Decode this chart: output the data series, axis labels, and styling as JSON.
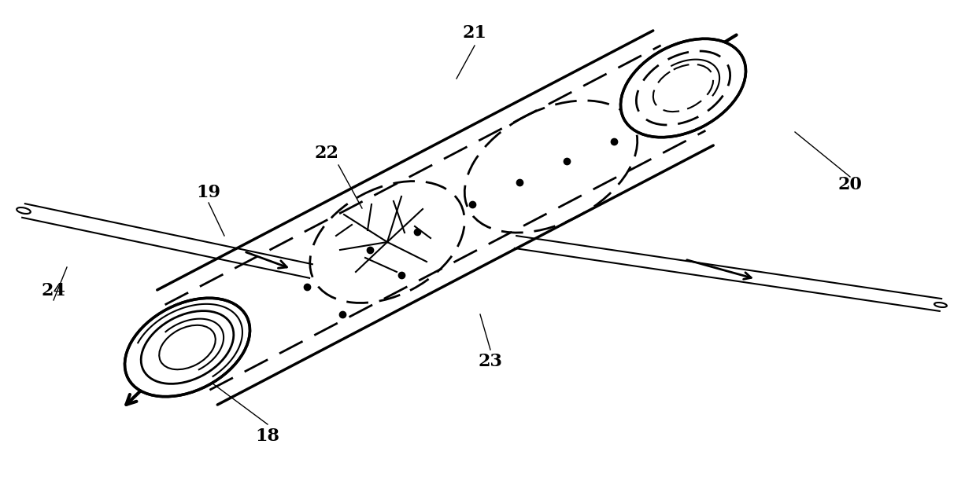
{
  "bg_color": "#ffffff",
  "line_color": "#000000",
  "fig_width": 12.4,
  "fig_height": 6.07,
  "dpi": 100
}
